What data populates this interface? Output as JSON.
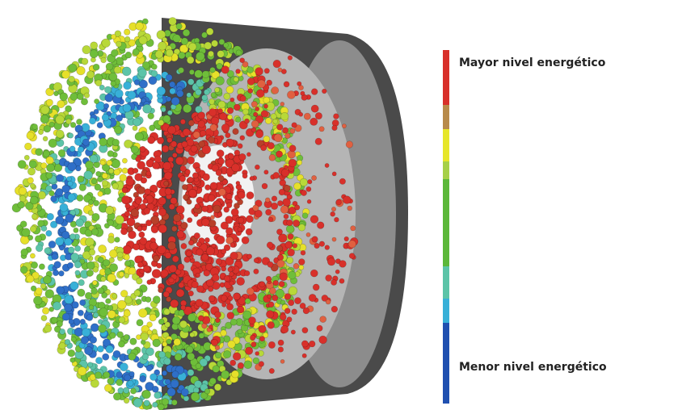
{
  "legend": {
    "top_label": "Mayor nivel energético",
    "bottom_label": "Menor nivel energético"
  }
}
